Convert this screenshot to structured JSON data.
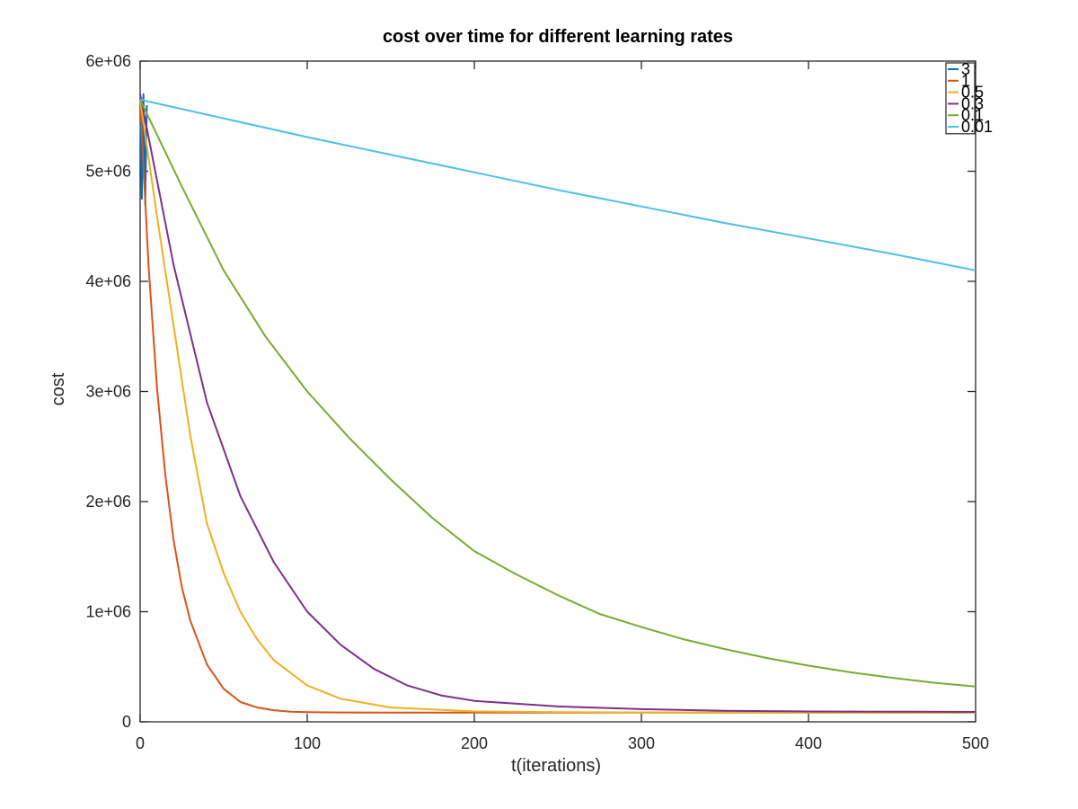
{
  "chart_data": {
    "type": "line",
    "title": "cost over time for different learning rates",
    "xlabel": "t(iterations)",
    "ylabel": "cost",
    "xlim": [
      0,
      500
    ],
    "ylim": [
      0,
      6000000
    ],
    "xticks": [
      0,
      100,
      200,
      300,
      400,
      500
    ],
    "xtick_labels": [
      "0",
      "100",
      "200",
      "300",
      "400",
      "500"
    ],
    "yticks": [
      0,
      1000000,
      2000000,
      3000000,
      4000000,
      5000000,
      6000000
    ],
    "ytick_labels": [
      "0",
      "1e+06",
      "2e+06",
      "3e+06",
      "4e+06",
      "5e+06",
      "6e+06"
    ],
    "grid": false,
    "legend_position": "top-right",
    "series": [
      {
        "name": "3",
        "color": "#0072BD",
        "x": [
          0,
          1,
          2,
          3,
          4
        ],
        "y": [
          5650000,
          4750000,
          5700000,
          4700000,
          5600000
        ]
      },
      {
        "name": "1",
        "color": "#D95319",
        "x": [
          0,
          5,
          10,
          15,
          20,
          25,
          30,
          40,
          50,
          60,
          70,
          80,
          90,
          100,
          120,
          150,
          200,
          250,
          300,
          350,
          400,
          450,
          500
        ],
        "y": [
          5650000,
          4150000,
          3050000,
          2250000,
          1650000,
          1220000,
          920000,
          520000,
          300000,
          180000,
          130000,
          105000,
          92000,
          88000,
          85000,
          84000,
          84000,
          84000,
          84000,
          84000,
          84000,
          84000,
          84000
        ]
      },
      {
        "name": "0.5",
        "color": "#EDB120",
        "x": [
          0,
          10,
          20,
          30,
          40,
          50,
          60,
          70,
          80,
          100,
          120,
          150,
          200,
          250,
          300,
          350,
          400,
          450,
          500
        ],
        "y": [
          5650000,
          4600000,
          3600000,
          2600000,
          1800000,
          1350000,
          1000000,
          750000,
          560000,
          330000,
          210000,
          130000,
          95000,
          88000,
          85000,
          84000,
          84000,
          84000,
          84000
        ]
      },
      {
        "name": "0.3",
        "color": "#7E2F8E",
        "x": [
          0,
          20,
          40,
          60,
          80,
          100,
          120,
          140,
          160,
          180,
          200,
          250,
          300,
          350,
          400,
          450,
          500
        ],
        "y": [
          5700000,
          4150000,
          2900000,
          2050000,
          1450000,
          1000000,
          700000,
          480000,
          330000,
          240000,
          190000,
          140000,
          115000,
          100000,
          94000,
          92000,
          90000
        ]
      },
      {
        "name": "0.1",
        "color": "#77AC30",
        "x": [
          0,
          25,
          50,
          75,
          100,
          125,
          150,
          175,
          200,
          225,
          250,
          275,
          300,
          325,
          350,
          375,
          400,
          425,
          450,
          475,
          500
        ],
        "y": [
          5650000,
          4860000,
          4100000,
          3500000,
          3000000,
          2580000,
          2200000,
          1850000,
          1550000,
          1340000,
          1150000,
          980000,
          860000,
          750000,
          660000,
          580000,
          510000,
          450000,
          400000,
          355000,
          320000
        ]
      },
      {
        "name": "0.01",
        "color": "#4DBEEE",
        "x": [
          0,
          50,
          100,
          150,
          200,
          250,
          300,
          350,
          400,
          450,
          500
        ],
        "y": [
          5650000,
          5480000,
          5310000,
          5150000,
          4990000,
          4830000,
          4680000,
          4530000,
          4390000,
          4250000,
          4100000
        ]
      }
    ]
  }
}
